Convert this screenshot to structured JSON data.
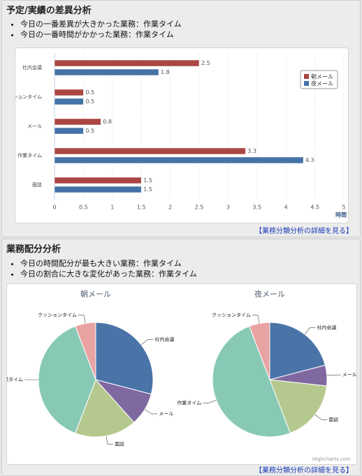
{
  "sections": [
    {
      "title": "予定/実績の差異分析",
      "bullets": [
        "今日の一番差異が大きかった業務：作業タイム",
        "今日の一番時間がかかった業務：作業タイム"
      ],
      "link": "【業務分類分析の詳細を見る】"
    },
    {
      "title": "業務配分分析",
      "bullets": [
        "今日の時間配分が最も大きい業務：作業タイム",
        "今日の割合に大きな変化があった業務：作業タイム"
      ],
      "link": "【業務分類分析の詳細を見る】",
      "credits": "Highcharts.com"
    }
  ],
  "chart_data": [
    {
      "type": "bar",
      "orientation": "horizontal",
      "categories": [
        "社内会議",
        "クッションタイム",
        "メール",
        "作業タイム",
        "面談"
      ],
      "series": [
        {
          "name": "朝メール",
          "color": "#aa4643",
          "values": [
            2.5,
            0.5,
            0.8,
            3.3,
            1.5
          ]
        },
        {
          "name": "夜メール",
          "color": "#4572a7",
          "values": [
            1.8,
            0.5,
            0.5,
            4.3,
            1.5
          ]
        }
      ],
      "xlim": [
        0,
        5
      ],
      "xticks": [
        0,
        0.5,
        1,
        1.5,
        2,
        2.5,
        3,
        3.5,
        4,
        4.5,
        5
      ],
      "x_label": "時間",
      "grid": true,
      "legend": "right"
    },
    {
      "type": "pie",
      "title": "朝メール",
      "categories": [
        "社内会議",
        "メール",
        "面談",
        "作業タイム",
        "クッションタイム"
      ],
      "values": [
        2.5,
        0.8,
        1.5,
        3.3,
        0.5
      ],
      "colors": [
        "#4a74a8",
        "#8068a0",
        "#b5c98e",
        "#88c9b6",
        "#e9a3a3"
      ]
    },
    {
      "type": "pie",
      "title": "夜メール",
      "categories": [
        "社内会議",
        "メール",
        "面談",
        "作業タイム",
        "クッションタイム"
      ],
      "values": [
        1.8,
        0.5,
        1.5,
        4.3,
        0.5
      ],
      "colors": [
        "#4a74a8",
        "#8068a0",
        "#b5c98e",
        "#88c9b6",
        "#e9a3a3"
      ]
    }
  ]
}
